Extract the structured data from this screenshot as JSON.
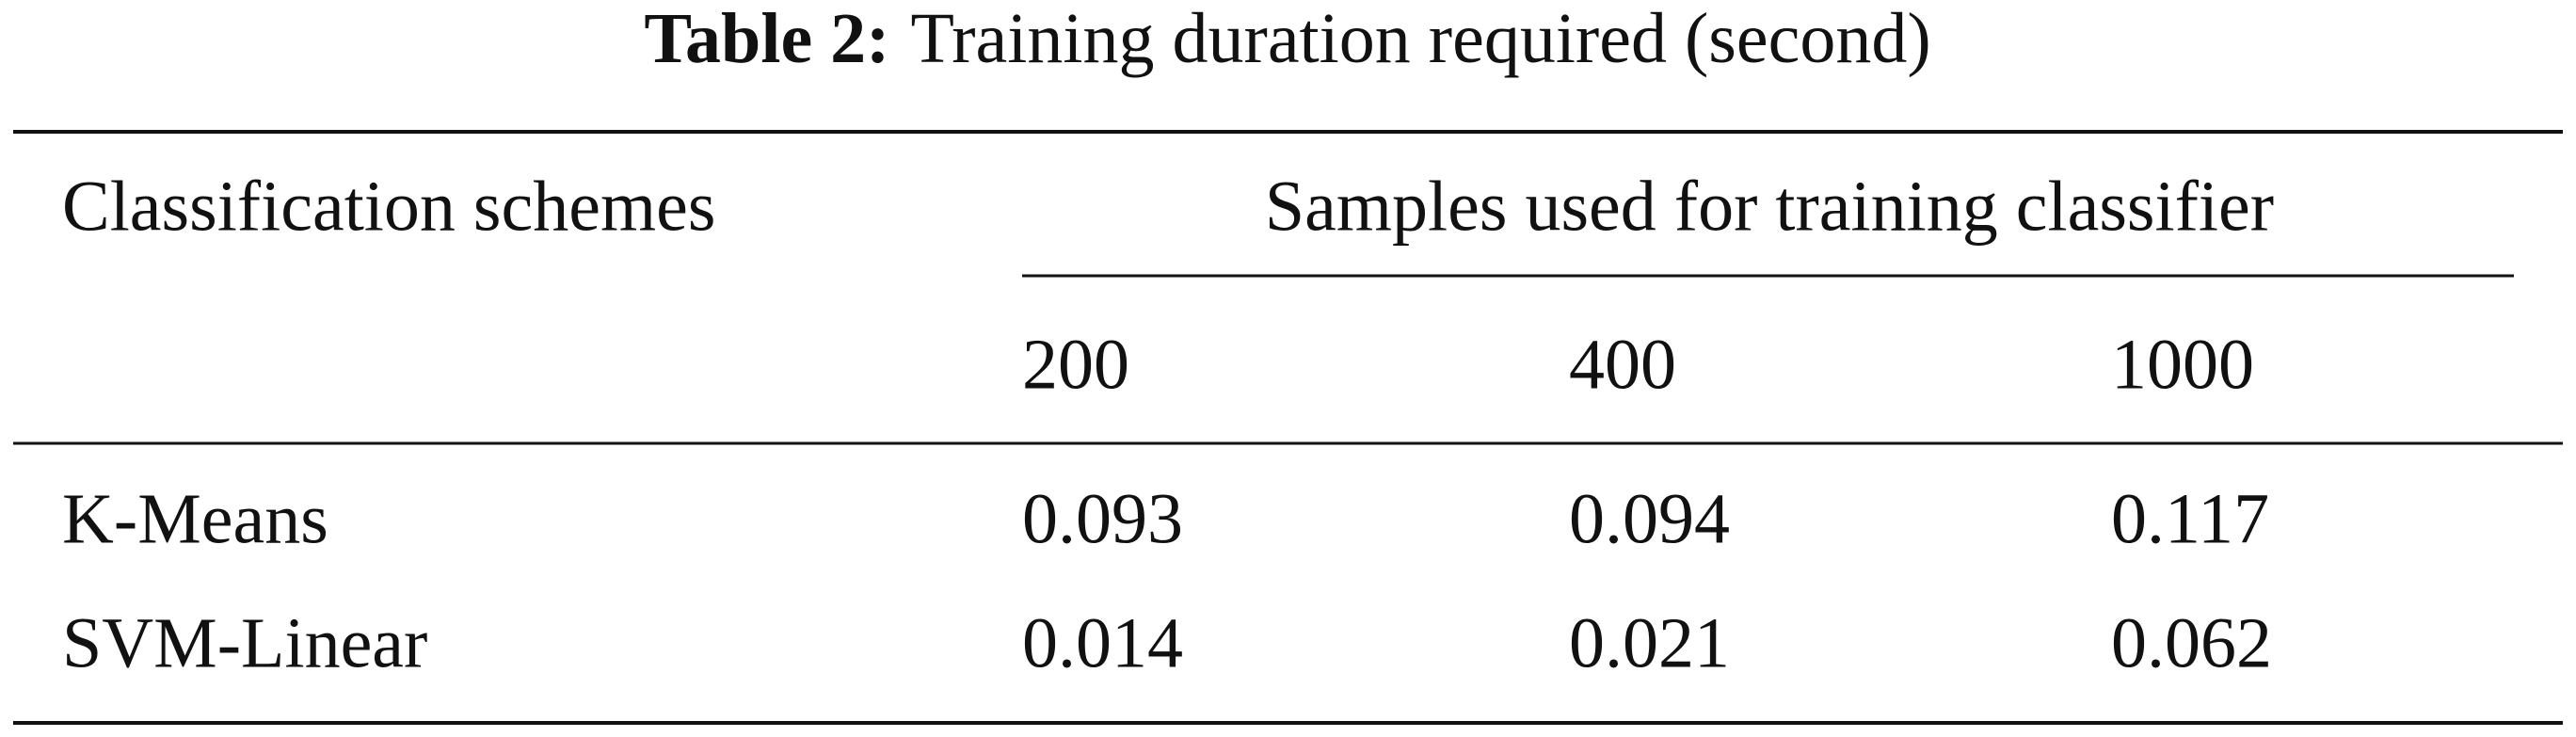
{
  "caption": {
    "label": "Table 2:",
    "text": "Training duration required (second)"
  },
  "table": {
    "header": {
      "row_label": "Classification schemes",
      "group": "Samples used for training classifier",
      "columns": [
        200,
        400,
        1000
      ]
    },
    "rows": [
      [
        "K-Means",
        0.093,
        0.094,
        0.117
      ],
      [
        "SVM-Linear",
        0.014,
        0.021,
        0.062
      ]
    ]
  }
}
